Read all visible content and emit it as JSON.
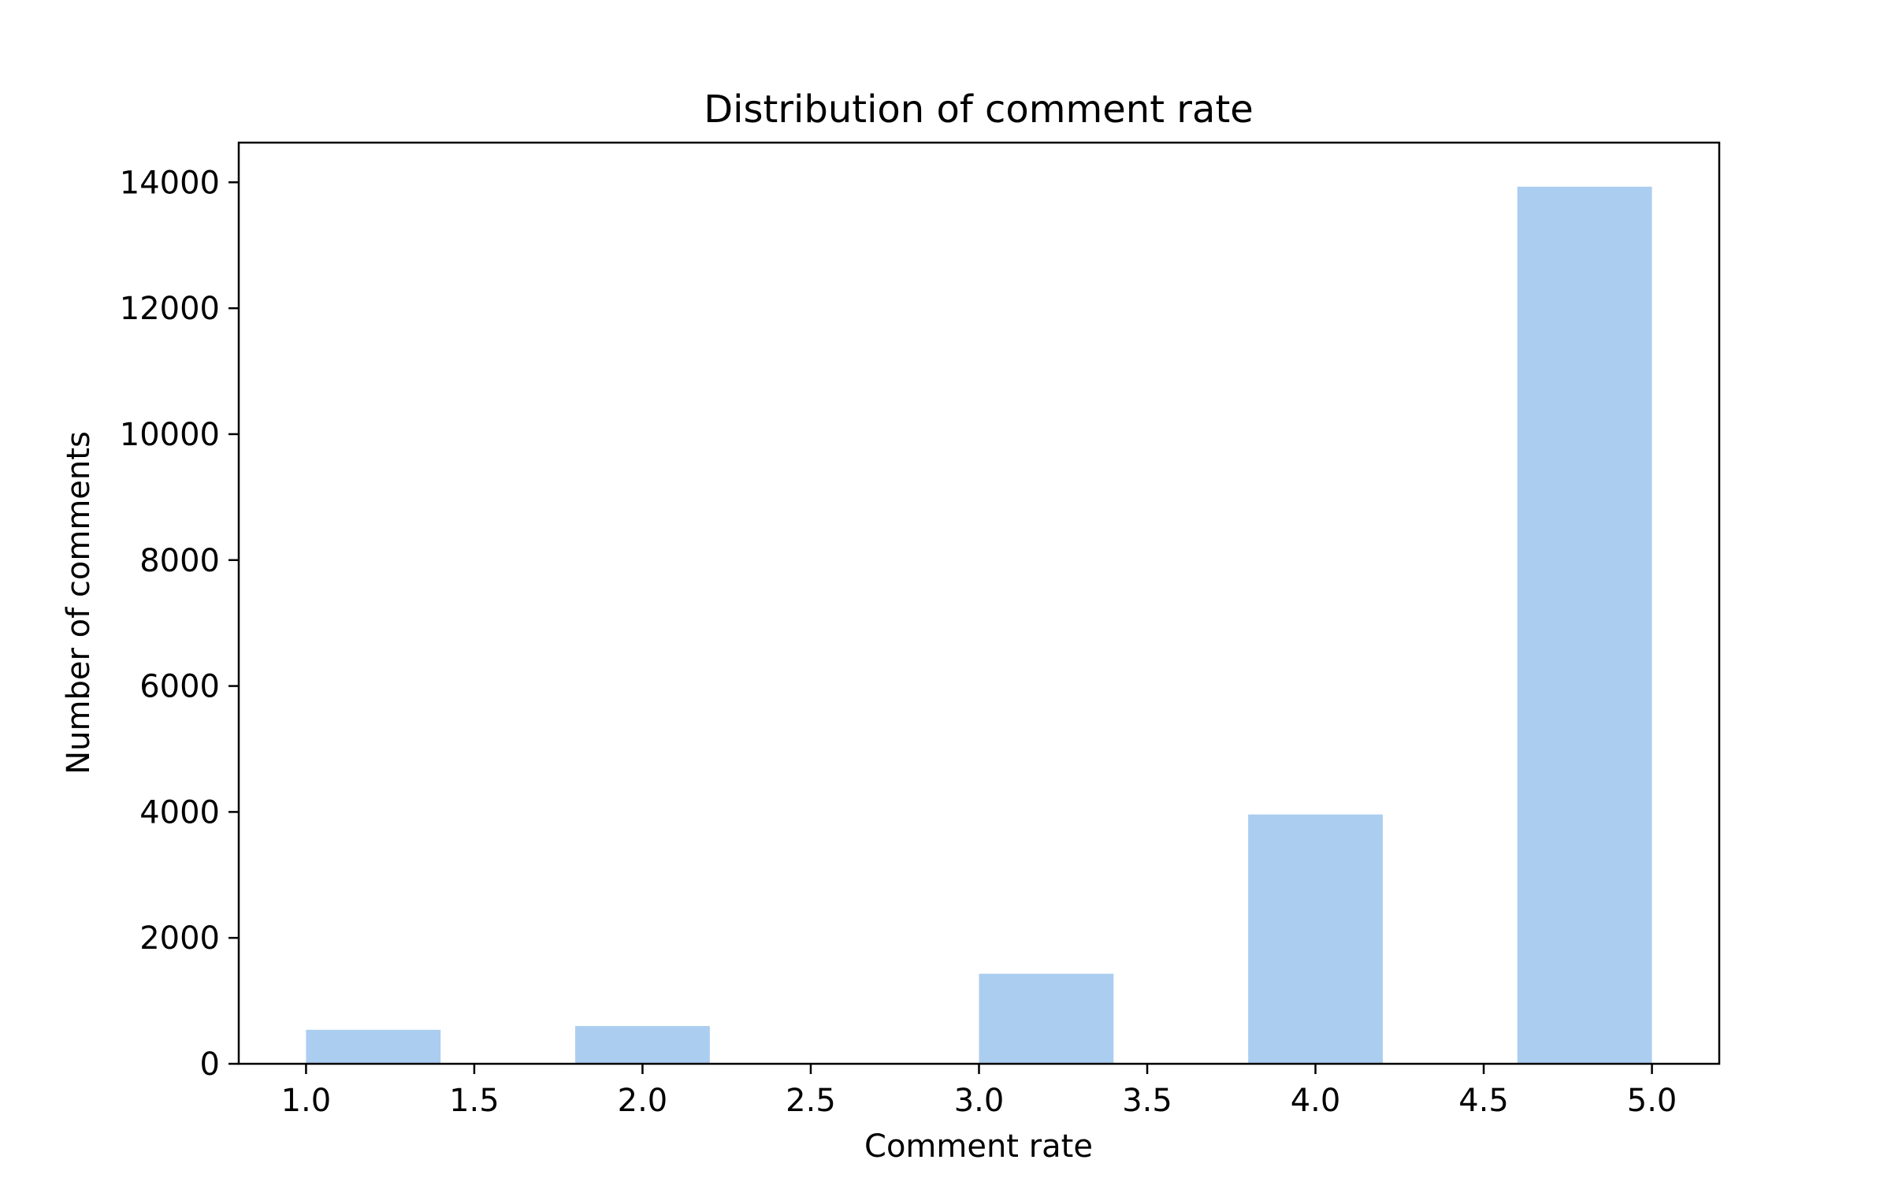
{
  "chart_data": {
    "type": "bar",
    "title": "Distribution of comment rate",
    "xlabel": "Comment rate",
    "ylabel": "Number of comments",
    "bins": [
      {
        "start": 1.0,
        "end": 1.4,
        "count": 540
      },
      {
        "start": 1.4,
        "end": 1.8,
        "count": 0
      },
      {
        "start": 1.8,
        "end": 2.2,
        "count": 600
      },
      {
        "start": 2.2,
        "end": 2.6,
        "count": 0
      },
      {
        "start": 2.6,
        "end": 3.0,
        "count": 0
      },
      {
        "start": 3.0,
        "end": 3.4,
        "count": 1430
      },
      {
        "start": 3.4,
        "end": 3.8,
        "count": 0
      },
      {
        "start": 3.8,
        "end": 4.2,
        "count": 3960
      },
      {
        "start": 4.2,
        "end": 4.6,
        "count": 0
      },
      {
        "start": 4.6,
        "end": 5.0,
        "count": 13930
      }
    ],
    "xlim": [
      0.8,
      5.2
    ],
    "ylim": [
      0,
      14630
    ],
    "xticks": [
      1.0,
      1.5,
      2.0,
      2.5,
      3.0,
      3.5,
      4.0,
      4.5,
      5.0
    ],
    "xtick_labels": [
      "1.0",
      "1.5",
      "2.0",
      "2.5",
      "3.0",
      "3.5",
      "4.0",
      "4.5",
      "5.0"
    ],
    "yticks": [
      0,
      2000,
      4000,
      6000,
      8000,
      10000,
      12000,
      14000
    ],
    "ytick_labels": [
      "0",
      "2000",
      "4000",
      "6000",
      "8000",
      "10000",
      "12000",
      "14000"
    ],
    "bar_color": "#abcdf0",
    "grid": false,
    "legend": "none"
  }
}
